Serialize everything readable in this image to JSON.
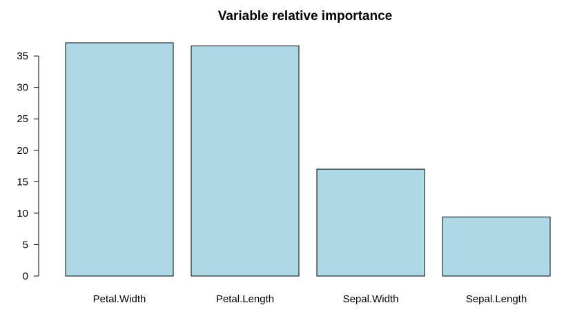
{
  "colors": {
    "bar_fill": "#ADD8E6",
    "bar_stroke": "#000000",
    "axis": "#000000",
    "background": "#FFFFFF"
  },
  "chart_data": {
    "type": "bar",
    "title": "Variable relative importance",
    "xlabel": "",
    "ylabel": "",
    "categories": [
      "Petal.Width",
      "Petal.Length",
      "Sepal.Width",
      "Sepal.Length"
    ],
    "values": [
      37.1,
      36.6,
      17.0,
      9.4
    ],
    "ylim": [
      0,
      37.1
    ],
    "yticks": [
      0,
      5,
      10,
      15,
      20,
      25,
      30,
      35
    ],
    "grid": false,
    "legend": "none"
  }
}
